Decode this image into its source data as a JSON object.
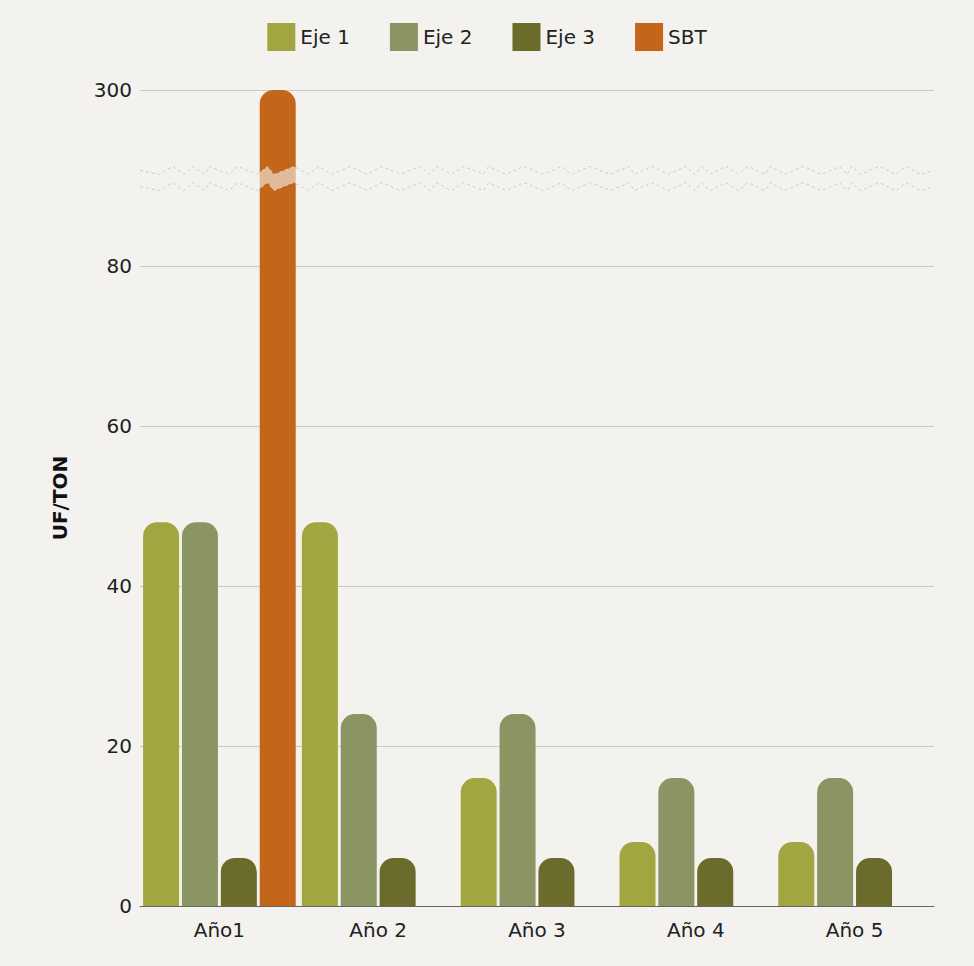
{
  "chart_data": {
    "type": "bar",
    "categories": [
      "Año1",
      "Año 2",
      "Año 3",
      "Año 4",
      "Año 5"
    ],
    "series": [
      {
        "name": "Eje 1",
        "color": "#a3a540",
        "values": [
          48,
          48,
          16,
          8,
          8
        ]
      },
      {
        "name": "Eje 2",
        "color": "#8b9563",
        "values": [
          48,
          24,
          24,
          16,
          16
        ]
      },
      {
        "name": "Eje 3",
        "color": "#6b6b2b",
        "values": [
          6,
          6,
          6,
          6,
          6
        ]
      },
      {
        "name": "SBT",
        "color": "#c4661a",
        "values": [
          300,
          null,
          null,
          null,
          null
        ]
      }
    ],
    "y_label": "UF/TON",
    "ylim": [
      0,
      300
    ],
    "yticks": [
      0,
      20,
      40,
      60,
      80,
      300
    ],
    "y_break": [
      90,
      290
    ],
    "grid": true,
    "legend": "top"
  }
}
